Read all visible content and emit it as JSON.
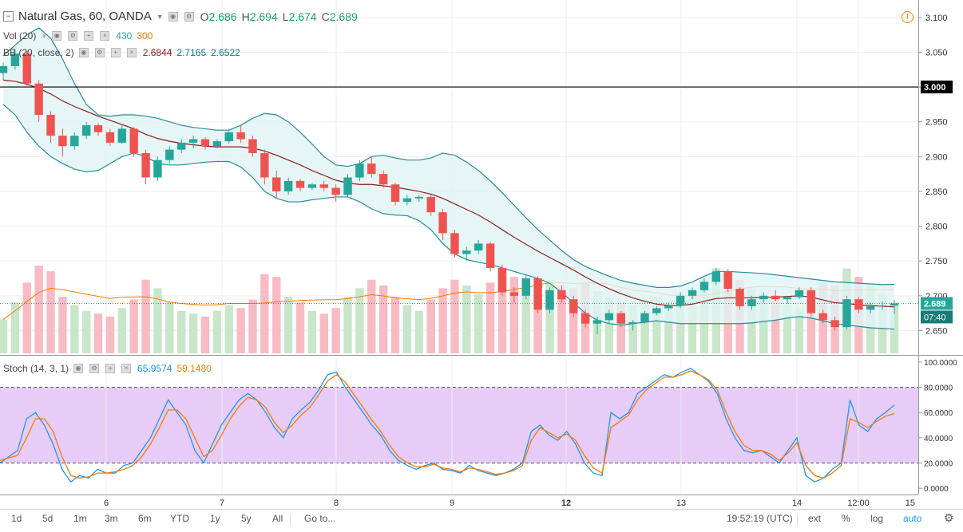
{
  "header": {
    "symbol": "Natural Gas, 60, OANDA",
    "ohlc": [
      {
        "label": "O",
        "value": "2.686"
      },
      {
        "label": "H",
        "value": "2.694"
      },
      {
        "label": "L",
        "value": "2.674"
      },
      {
        "label": "C",
        "value": "2.689"
      }
    ],
    "value_color": "#1e9e62"
  },
  "volume_legend": {
    "label": "Vol (20)",
    "v1": "430",
    "v2": "300",
    "v1_color": "#26a69a",
    "v2_color": "#f57c00"
  },
  "bb_legend": {
    "label": "BB (20, close, 2)",
    "v1": "2.6844",
    "v2": "2.7165",
    "v3": "2.6522",
    "v1_color": "#8b1a1a",
    "v2_color": "#007a8a",
    "v3_color": "#007a8a"
  },
  "stoch_legend": {
    "label": "Stoch (14, 3, 1)",
    "v1": "65.9574",
    "v2": "59.1480",
    "v1_color": "#2196f3",
    "v2_color": "#f57c00"
  },
  "price_axis": {
    "ticks": [
      "3.100",
      "3.050",
      "3.000",
      "2.950",
      "2.900",
      "2.850",
      "2.800",
      "2.750",
      "2.700",
      "2.650"
    ],
    "line_label": "3.000",
    "last_price_label": "2.689",
    "countdown_label": "07:40"
  },
  "stoch_axis": {
    "ticks": [
      "100.0000",
      "80.0000",
      "60.0000",
      "40.0000",
      "20.0000",
      "0.0000"
    ]
  },
  "time_axis": {
    "ticks": [
      "6",
      "7",
      "8",
      "9",
      "12",
      "13",
      "14",
      "12:00",
      "15"
    ]
  },
  "toolbar": {
    "periods": [
      "1d",
      "5d",
      "1m",
      "3m",
      "6m",
      "YTD",
      "1y",
      "5y",
      "All"
    ],
    "goto": "Go to...",
    "clock": "19:52:19 (UTC)",
    "ext": "ext",
    "percent": "%",
    "log": "log",
    "auto": "auto"
  },
  "colors": {
    "up": "#26a69a",
    "down": "#ef5350",
    "band_fill": "#e0f4f4",
    "band_line": "#2a8a9a",
    "basis": "#8b1a1a",
    "stoch_zone": "#e6ccf7"
  },
  "chart_data": [
    {
      "type": "candlestick",
      "title": "Natural Gas, 60, OANDA",
      "x": [
        "5",
        "5",
        "5",
        "5",
        "5",
        "6",
        "6",
        "6",
        "6",
        "6",
        "6",
        "6",
        "6",
        "6",
        "6",
        "6",
        "7",
        "7",
        "7",
        "7",
        "7",
        "7",
        "7",
        "7",
        "7",
        "7",
        "8",
        "8",
        "8",
        "8",
        "8",
        "8",
        "8",
        "8",
        "8",
        "8",
        "9",
        "9",
        "9",
        "9",
        "9",
        "9",
        "9",
        "9",
        "9",
        "9",
        "12",
        "12",
        "12",
        "12",
        "12",
        "12",
        "12",
        "12",
        "12",
        "12",
        "13",
        "13",
        "13",
        "13",
        "13",
        "13",
        "13",
        "13",
        "13",
        "13",
        "14",
        "14",
        "14",
        "14",
        "14",
        "14",
        "14",
        "14",
        "14",
        "14"
      ],
      "ohlc": [
        [
          3.02,
          3.035,
          3.01,
          3.03
        ],
        [
          3.03,
          3.055,
          3.025,
          3.048
        ],
        [
          3.048,
          3.052,
          3.0,
          3.005
        ],
        [
          3.005,
          3.01,
          2.95,
          2.96
        ],
        [
          2.96,
          2.965,
          2.92,
          2.93
        ],
        [
          2.93,
          2.94,
          2.9,
          2.915
        ],
        [
          2.915,
          2.935,
          2.91,
          2.93
        ],
        [
          2.93,
          2.95,
          2.925,
          2.945
        ],
        [
          2.945,
          2.948,
          2.93,
          2.935
        ],
        [
          2.935,
          2.94,
          2.915,
          2.92
        ],
        [
          2.92,
          2.945,
          2.918,
          2.94
        ],
        [
          2.94,
          2.942,
          2.9,
          2.905
        ],
        [
          2.905,
          2.91,
          2.86,
          2.87
        ],
        [
          2.87,
          2.9,
          2.865,
          2.895
        ],
        [
          2.895,
          2.915,
          2.89,
          2.91
        ],
        [
          2.91,
          2.925,
          2.905,
          2.92
        ],
        [
          2.92,
          2.93,
          2.912,
          2.925
        ],
        [
          2.925,
          2.928,
          2.91,
          2.915
        ],
        [
          2.915,
          2.925,
          2.912,
          2.922
        ],
        [
          2.922,
          2.94,
          2.918,
          2.935
        ],
        [
          2.935,
          2.945,
          2.92,
          2.925
        ],
        [
          2.925,
          2.93,
          2.9,
          2.905
        ],
        [
          2.905,
          2.91,
          2.86,
          2.87
        ],
        [
          2.87,
          2.88,
          2.84,
          2.85
        ],
        [
          2.85,
          2.87,
          2.845,
          2.865
        ],
        [
          2.865,
          2.868,
          2.85,
          2.855
        ],
        [
          2.855,
          2.862,
          2.852,
          2.86
        ],
        [
          2.86,
          2.865,
          2.85,
          2.855
        ],
        [
          2.855,
          2.86,
          2.835,
          2.845
        ],
        [
          2.845,
          2.875,
          2.842,
          2.87
        ],
        [
          2.87,
          2.895,
          2.865,
          2.89
        ],
        [
          2.89,
          2.9,
          2.87,
          2.875
        ],
        [
          2.875,
          2.88,
          2.855,
          2.86
        ],
        [
          2.86,
          2.862,
          2.83,
          2.835
        ],
        [
          2.835,
          2.845,
          2.83,
          2.84
        ],
        [
          2.84,
          2.845,
          2.835,
          2.842
        ],
        [
          2.842,
          2.845,
          2.815,
          2.82
        ],
        [
          2.82,
          2.825,
          2.78,
          2.79
        ],
        [
          2.79,
          2.795,
          2.755,
          2.76
        ],
        [
          2.76,
          2.77,
          2.75,
          2.765
        ],
        [
          2.765,
          2.78,
          2.76,
          2.775
        ],
        [
          2.775,
          2.778,
          2.735,
          2.74
        ],
        [
          2.74,
          2.745,
          2.7,
          2.705
        ],
        [
          2.705,
          2.712,
          2.69,
          2.7
        ],
        [
          2.7,
          2.73,
          2.695,
          2.725
        ],
        [
          2.725,
          2.728,
          2.675,
          2.68
        ],
        [
          2.68,
          2.712,
          2.675,
          2.708
        ],
        [
          2.708,
          2.715,
          2.69,
          2.695
        ],
        [
          2.695,
          2.7,
          2.67,
          2.675
        ],
        [
          2.675,
          2.68,
          2.655,
          2.66
        ],
        [
          2.66,
          2.67,
          2.645,
          2.665
        ],
        [
          2.665,
          2.68,
          2.66,
          2.675
        ],
        [
          2.675,
          2.678,
          2.655,
          2.66
        ],
        [
          2.66,
          2.665,
          2.65,
          2.662
        ],
        [
          2.662,
          2.678,
          2.66,
          2.675
        ],
        [
          2.675,
          2.685,
          2.672,
          2.682
        ],
        [
          2.682,
          2.69,
          2.678,
          2.686
        ],
        [
          2.686,
          2.705,
          2.682,
          2.7
        ],
        [
          2.7,
          2.712,
          2.695,
          2.708
        ],
        [
          2.708,
          2.725,
          2.705,
          2.72
        ],
        [
          2.72,
          2.74,
          2.715,
          2.735
        ],
        [
          2.735,
          2.738,
          2.705,
          2.71
        ],
        [
          2.71,
          2.712,
          2.68,
          2.685
        ],
        [
          2.685,
          2.7,
          2.68,
          2.695
        ],
        [
          2.695,
          2.705,
          2.69,
          2.7
        ],
        [
          2.7,
          2.708,
          2.692,
          2.695
        ],
        [
          2.695,
          2.7,
          2.688,
          2.698
        ],
        [
          2.698,
          2.712,
          2.695,
          2.708
        ],
        [
          2.708,
          2.712,
          2.67,
          2.675
        ],
        [
          2.675,
          2.68,
          2.66,
          2.665
        ],
        [
          2.665,
          2.67,
          2.65,
          2.655
        ],
        [
          2.655,
          2.7,
          2.652,
          2.695
        ],
        [
          2.695,
          2.698,
          2.675,
          2.68
        ],
        [
          2.68,
          2.69,
          2.675,
          2.685
        ],
        [
          2.685,
          2.692,
          2.68,
          2.686
        ],
        [
          2.686,
          2.694,
          2.674,
          2.689
        ]
      ],
      "volume": [
        120,
        180,
        250,
        310,
        290,
        200,
        170,
        150,
        140,
        130,
        160,
        190,
        260,
        230,
        180,
        150,
        140,
        130,
        150,
        170,
        160,
        190,
        280,
        270,
        200,
        180,
        150,
        140,
        160,
        200,
        230,
        260,
        240,
        200,
        170,
        150,
        190,
        230,
        260,
        240,
        210,
        250,
        290,
        270,
        230,
        250,
        260,
        240,
        230,
        250,
        220,
        200,
        180,
        170,
        190,
        200,
        180,
        210,
        230,
        260,
        300,
        280,
        260,
        230,
        210,
        190,
        170,
        160,
        220,
        250,
        240,
        300,
        270,
        240,
        210,
        180
      ],
      "bb_basis": [
        3.01,
        3.008,
        3.004,
        2.998,
        2.99,
        2.98,
        2.972,
        2.965,
        2.958,
        2.952,
        2.946,
        2.94,
        2.932,
        2.926,
        2.922,
        2.919,
        2.917,
        2.915,
        2.914,
        2.914,
        2.914,
        2.912,
        2.908,
        2.902,
        2.895,
        2.888,
        2.88,
        2.873,
        2.866,
        2.862,
        2.86,
        2.86,
        2.858,
        2.856,
        2.853,
        2.85,
        2.846,
        2.84,
        2.832,
        2.824,
        2.816,
        2.806,
        2.795,
        2.784,
        2.774,
        2.764,
        2.755,
        2.746,
        2.737,
        2.727,
        2.718,
        2.71,
        2.703,
        2.697,
        2.692,
        2.688,
        2.686,
        2.686,
        2.688,
        2.692,
        2.696,
        2.697,
        2.697,
        2.697,
        2.698,
        2.698,
        2.699,
        2.7,
        2.698,
        2.694,
        2.69,
        2.689,
        2.687,
        2.686,
        2.685,
        2.684
      ],
      "bb_upper": [
        3.045,
        3.06,
        3.075,
        3.085,
        3.07,
        3.04,
        3.005,
        2.975,
        2.96,
        2.958,
        2.96,
        2.96,
        2.958,
        2.955,
        2.95,
        2.945,
        2.942,
        2.94,
        2.938,
        2.938,
        2.945,
        2.955,
        2.962,
        2.96,
        2.95,
        2.935,
        2.918,
        2.9,
        2.888,
        2.886,
        2.89,
        2.9,
        2.902,
        2.898,
        2.895,
        2.895,
        2.898,
        2.905,
        2.902,
        2.892,
        2.88,
        2.865,
        2.848,
        2.83,
        2.812,
        2.795,
        2.78,
        2.765,
        2.752,
        2.742,
        2.735,
        2.728,
        2.722,
        2.718,
        2.715,
        2.712,
        2.712,
        2.714,
        2.72,
        2.728,
        2.735,
        2.735,
        2.734,
        2.733,
        2.732,
        2.73,
        2.728,
        2.726,
        2.724,
        2.722,
        2.72,
        2.719,
        2.718,
        2.717,
        2.716,
        2.7165
      ],
      "bb_lower": [
        2.975,
        2.96,
        2.935,
        2.915,
        2.9,
        2.89,
        2.882,
        2.878,
        2.88,
        2.89,
        2.9,
        2.905,
        2.9,
        2.89,
        2.888,
        2.888,
        2.89,
        2.892,
        2.893,
        2.893,
        2.885,
        2.87,
        2.85,
        2.84,
        2.835,
        2.835,
        2.838,
        2.84,
        2.842,
        2.842,
        2.835,
        2.825,
        2.818,
        2.816,
        2.815,
        2.808,
        2.795,
        2.775,
        2.76,
        2.752,
        2.748,
        2.745,
        2.74,
        2.735,
        2.73,
        2.725,
        2.718,
        2.705,
        2.69,
        2.675,
        2.665,
        2.66,
        2.658,
        2.66,
        2.662,
        2.664,
        2.662,
        2.66,
        2.66,
        2.66,
        2.66,
        2.66,
        2.66,
        2.661,
        2.663,
        2.665,
        2.668,
        2.67,
        2.668,
        2.664,
        2.66,
        2.658,
        2.656,
        2.654,
        2.653,
        2.6522
      ],
      "horizontal_line": 3.0,
      "last_price": 2.689,
      "ylim": [
        2.615,
        3.125
      ]
    },
    {
      "type": "line",
      "title": "Stoch (14, 3, 1)",
      "series": [
        {
          "name": "%K",
          "values": [
            20,
            25,
            30,
            55,
            60,
            50,
            35,
            15,
            5,
            10,
            8,
            15,
            12,
            12,
            18,
            20,
            30,
            40,
            55,
            70,
            60,
            50,
            30,
            20,
            35,
            50,
            60,
            70,
            75,
            70,
            60,
            48,
            40,
            55,
            62,
            68,
            78,
            90,
            92,
            80,
            70,
            60,
            50,
            42,
            30,
            22,
            18,
            15,
            18,
            20,
            15,
            14,
            12,
            18,
            14,
            12,
            10,
            12,
            15,
            20,
            45,
            50,
            42,
            38,
            45,
            35,
            20,
            12,
            10,
            60,
            55,
            60,
            75,
            80,
            85,
            90,
            88,
            92,
            95,
            90,
            85,
            75,
            55,
            40,
            30,
            28,
            30,
            25,
            20,
            30,
            40,
            10,
            5,
            8,
            15,
            20,
            70,
            50,
            45,
            55,
            60,
            65.96
          ]
        },
        {
          "name": "%D",
          "values": [
            22,
            24,
            26,
            40,
            55,
            55,
            45,
            25,
            10,
            8,
            9,
            12,
            12,
            13,
            15,
            18,
            25,
            35,
            48,
            62,
            62,
            55,
            40,
            25,
            30,
            42,
            55,
            65,
            72,
            70,
            64,
            52,
            44,
            50,
            58,
            64,
            74,
            85,
            90,
            84,
            74,
            64,
            54,
            45,
            34,
            25,
            20,
            17,
            17,
            19,
            16,
            15,
            13,
            16,
            15,
            13,
            11,
            12,
            14,
            18,
            38,
            48,
            44,
            40,
            43,
            38,
            26,
            16,
            12,
            48,
            53,
            58,
            70,
            78,
            83,
            88,
            88,
            90,
            93,
            90,
            86,
            78,
            60,
            45,
            34,
            30,
            30,
            27,
            22,
            28,
            36,
            18,
            10,
            8,
            12,
            18,
            55,
            52,
            48,
            53,
            57,
            59.15
          ]
        }
      ],
      "ylim": [
        -5,
        105
      ],
      "zone": [
        20,
        80
      ]
    }
  ]
}
